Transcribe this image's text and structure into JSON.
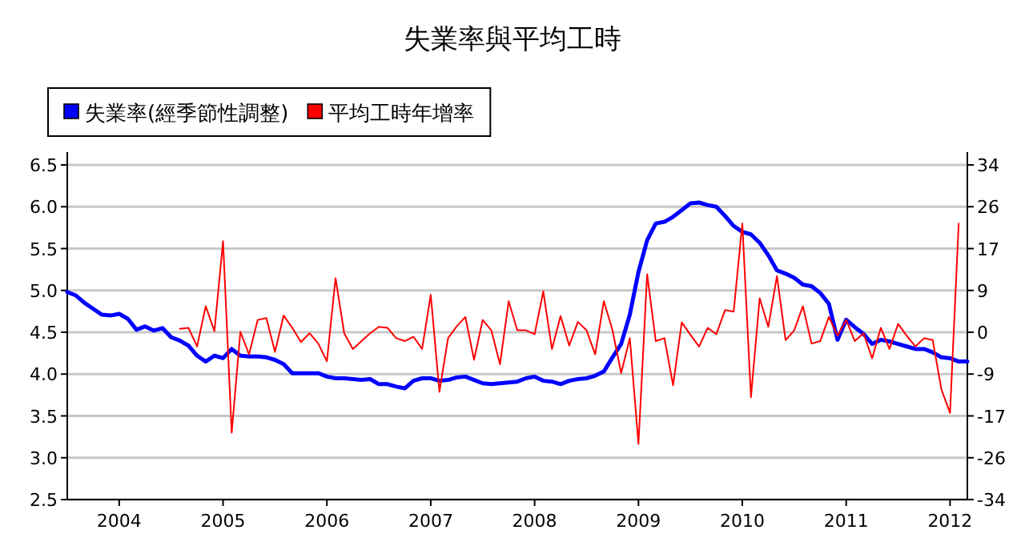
{
  "chart_data": {
    "type": "line",
    "title": "失業率與平均工時",
    "legend": "top left",
    "grid": "y",
    "xlim": [
      "2003-07",
      "2012-03"
    ],
    "xticks": [
      {
        "value": "2004",
        "label": "2004"
      },
      {
        "value": "2005",
        "label": "2005"
      },
      {
        "value": "2006",
        "label": "2006"
      },
      {
        "value": "2007",
        "label": "2007"
      },
      {
        "value": "2008",
        "label": "2008"
      },
      {
        "value": "2009",
        "label": "2009"
      },
      {
        "value": "2010",
        "label": "2010"
      },
      {
        "value": "2011",
        "label": "2011"
      },
      {
        "value": "2012",
        "label": "2012"
      }
    ],
    "ylim": [
      2.5,
      6.5
    ],
    "yticks": [
      2.5,
      {
        "value": 3,
        "label": "3.0"
      },
      3.5,
      {
        "value": 4,
        "label": "4.0"
      },
      4.5,
      {
        "value": 5,
        "label": "5.0"
      },
      5.5,
      {
        "value": 6,
        "label": "6.0"
      },
      6.5
    ],
    "y2lim": [
      -34,
      34
    ],
    "y2ticks": [
      -34,
      {
        "value": -25.5,
        "label": "-26"
      },
      -17,
      {
        "value": -8.5,
        "label": "-9"
      },
      0,
      {
        "value": 8.5,
        "label": "9"
      },
      17,
      {
        "value": 25.5,
        "label": "26"
      },
      34
    ],
    "series": [
      {
        "name": "失業率(經季節性調整)",
        "color": "#0000ff",
        "x": [
          "2003-07",
          "2003-08",
          "2003-09",
          "2003-10",
          "2003-11",
          "2003-12",
          "2004-01",
          "2004-02",
          "2004-03",
          "2004-04",
          "2004-05",
          "2004-06",
          "2004-07",
          "2004-08",
          "2004-09",
          "2004-10",
          "2004-11",
          "2004-12",
          "2005-01",
          "2005-02",
          "2005-03",
          "2005-04",
          "2005-05",
          "2005-06",
          "2005-07",
          "2005-08",
          "2005-09",
          "2005-10",
          "2005-11",
          "2005-12",
          "2006-01",
          "2006-02",
          "2006-03",
          "2006-04",
          "2006-05",
          "2006-06",
          "2006-07",
          "2006-08",
          "2006-09",
          "2006-10",
          "2006-11",
          "2006-12",
          "2007-01",
          "2007-02",
          "2007-03",
          "2007-04",
          "2007-05",
          "2007-06",
          "2007-07",
          "2007-08",
          "2007-09",
          "2007-10",
          "2007-11",
          "2007-12",
          "2008-01",
          "2008-02",
          "2008-03",
          "2008-04",
          "2008-05",
          "2008-06",
          "2008-07",
          "2008-08",
          "2008-09",
          "2008-10",
          "2008-11",
          "2008-12",
          "2009-01",
          "2009-02",
          "2009-03",
          "2009-04",
          "2009-05",
          "2009-06",
          "2009-07",
          "2009-08",
          "2009-09",
          "2009-10",
          "2009-11",
          "2009-12",
          "2010-01",
          "2010-02",
          "2010-03",
          "2010-04",
          "2010-05",
          "2010-06",
          "2010-07",
          "2010-08",
          "2010-09",
          "2010-10",
          "2010-11",
          "2010-12",
          "2011-01",
          "2011-02",
          "2011-03",
          "2011-04",
          "2011-05",
          "2011-06",
          "2011-07",
          "2011-08",
          "2011-09",
          "2011-10",
          "2011-11",
          "2011-12",
          "2012-01",
          "2012-02",
          "2012-03"
        ],
        "values": [
          4.98,
          4.94,
          4.85,
          4.78,
          4.71,
          4.7,
          4.72,
          4.66,
          4.53,
          4.57,
          4.52,
          4.55,
          4.44,
          4.4,
          4.34,
          4.22,
          4.15,
          4.22,
          4.19,
          4.3,
          4.22,
          4.21,
          4.21,
          4.2,
          4.17,
          4.12,
          4.01,
          4.01,
          4.01,
          4.01,
          3.97,
          3.95,
          3.95,
          3.94,
          3.93,
          3.94,
          3.88,
          3.88,
          3.85,
          3.83,
          3.92,
          3.95,
          3.95,
          3.92,
          3.93,
          3.96,
          3.97,
          3.93,
          3.89,
          3.88,
          3.89,
          3.9,
          3.91,
          3.95,
          3.97,
          3.92,
          3.91,
          3.88,
          3.92,
          3.94,
          3.95,
          3.98,
          4.03,
          4.2,
          4.36,
          4.71,
          5.22,
          5.6,
          5.8,
          5.82,
          5.88,
          5.96,
          6.04,
          6.05,
          6.02,
          6.0,
          5.89,
          5.77,
          5.7,
          5.67,
          5.57,
          5.42,
          5.24,
          5.2,
          5.15,
          5.07,
          5.05,
          4.97,
          4.84,
          4.41,
          4.65,
          4.56,
          4.48,
          4.36,
          4.41,
          4.39,
          4.36,
          4.33,
          4.3,
          4.3,
          4.26,
          4.2,
          4.19,
          4.15,
          4.15
        ]
      },
      {
        "name": "平均工時年增率",
        "color": "#ff0000",
        "axis": "y2",
        "x": [
          "2004-08",
          "2004-09",
          "2004-10",
          "2004-11",
          "2004-12",
          "2005-01",
          "2005-02",
          "2005-03",
          "2005-04",
          "2005-05",
          "2005-06",
          "2005-07",
          "2005-08",
          "2005-09",
          "2005-10",
          "2005-11",
          "2005-12",
          "2006-01",
          "2006-02",
          "2006-03",
          "2006-04",
          "2006-05",
          "2006-06",
          "2006-07",
          "2006-08",
          "2006-09",
          "2006-10",
          "2006-11",
          "2006-12",
          "2007-01",
          "2007-02",
          "2007-03",
          "2007-04",
          "2007-05",
          "2007-06",
          "2007-07",
          "2007-08",
          "2007-09",
          "2007-10",
          "2007-11",
          "2007-12",
          "2008-01",
          "2008-02",
          "2008-03",
          "2008-04",
          "2008-05",
          "2008-06",
          "2008-07",
          "2008-08",
          "2008-09",
          "2008-10",
          "2008-11",
          "2008-12",
          "2009-01",
          "2009-02",
          "2009-03",
          "2009-04",
          "2009-05",
          "2009-06",
          "2009-07",
          "2009-08",
          "2009-09",
          "2009-10",
          "2009-11",
          "2009-12",
          "2010-01",
          "2010-02",
          "2010-03",
          "2010-04",
          "2010-05",
          "2010-06",
          "2010-07",
          "2010-08",
          "2010-09",
          "2010-10",
          "2010-11",
          "2010-12",
          "2011-01",
          "2011-02",
          "2011-03",
          "2011-04",
          "2011-05",
          "2011-06",
          "2011-07",
          "2011-08",
          "2011-09",
          "2011-10",
          "2011-11",
          "2011-12",
          "2012-01",
          "2012-02"
        ],
        "values": [
          0.7,
          0.9,
          -2.9,
          5.3,
          0.2,
          18.5,
          -20.4,
          0.1,
          -4.5,
          2.5,
          2.9,
          -4.0,
          3.4,
          0.9,
          -2.0,
          -0.2,
          -2.3,
          -5.9,
          11.0,
          -0.2,
          -3.4,
          -1.8,
          -0.2,
          1.1,
          0.9,
          -1.2,
          -1.8,
          -0.9,
          -3.4,
          7.6,
          -12.1,
          -1.2,
          1.2,
          3.1,
          -5.6,
          2.5,
          0.4,
          -6.5,
          6.3,
          0.4,
          0.4,
          -0.4,
          8.3,
          -3.4,
          3.3,
          -2.7,
          2.1,
          0.4,
          -4.5,
          6.3,
          0.4,
          -8.3,
          -1.2,
          -22.7,
          11.8,
          -1.8,
          -1.2,
          -10.8,
          2.0,
          -0.5,
          -2.9,
          0.9,
          -0.4,
          4.5,
          4.2,
          22.1,
          -13.2,
          6.9,
          1.1,
          11.4,
          -1.6,
          0.4,
          5.3,
          -2.3,
          -1.8,
          3.1,
          -0.7,
          2.5,
          -1.8,
          -0.2,
          -5.3,
          0.9,
          -3.4,
          1.7,
          -0.7,
          -2.9,
          -1.2,
          -1.6,
          -11.6,
          -16.4,
          22.1
        ]
      }
    ]
  }
}
